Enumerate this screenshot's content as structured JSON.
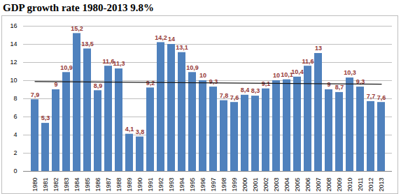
{
  "chart_data": {
    "type": "bar",
    "title": "GDP growth rate 1980-2013 9.8%",
    "categories": [
      "1980",
      "1981",
      "1982",
      "1983",
      "1984",
      "1985",
      "1986",
      "1987",
      "1988",
      "1989",
      "1990",
      "1991",
      "1992",
      "1993",
      "1994",
      "1995",
      "1996",
      "1997",
      "1998",
      "1999",
      "2000",
      "2001",
      "2002",
      "2003",
      "2004",
      "2005",
      "2006",
      "2007",
      "2008",
      "2009",
      "2010",
      "2011",
      "2012",
      "2013"
    ],
    "values": [
      7.9,
      5.3,
      9,
      10.9,
      15.2,
      13.5,
      8.9,
      11.6,
      11.3,
      4.1,
      3.8,
      9.2,
      14.2,
      14,
      13.1,
      10.9,
      10,
      9.3,
      7.8,
      7.6,
      8.4,
      8.3,
      9.1,
      10,
      10.1,
      10.4,
      11.6,
      13,
      9,
      8.7,
      10.3,
      9.3,
      7.7,
      7.6
    ],
    "value_labels": [
      "7,9",
      "5,3",
      "9",
      "10,9",
      "15,2",
      "13,5",
      "8,9",
      "11,6",
      "11,3",
      "4,1",
      "3,8",
      "9,2",
      "14,2",
      "14",
      "13,1",
      "10,9",
      "10",
      "9,3",
      "7,8",
      "7,6",
      "8,4",
      "8,3",
      "9,1",
      "10",
      "10,1",
      "10,4",
      "11,6",
      "13",
      "9",
      "8,7",
      "10,3",
      "9,3",
      "7,7",
      "7,6"
    ],
    "trend_line": {
      "x": [
        "1980",
        "2013"
      ],
      "values": [
        9.9,
        9.6
      ]
    },
    "color": "#4f81bd",
    "ylim": [
      0,
      16
    ],
    "yticks": [
      0,
      2,
      4,
      6,
      8,
      10,
      12,
      14,
      16
    ],
    "grid": true,
    "data_labels": true
  }
}
